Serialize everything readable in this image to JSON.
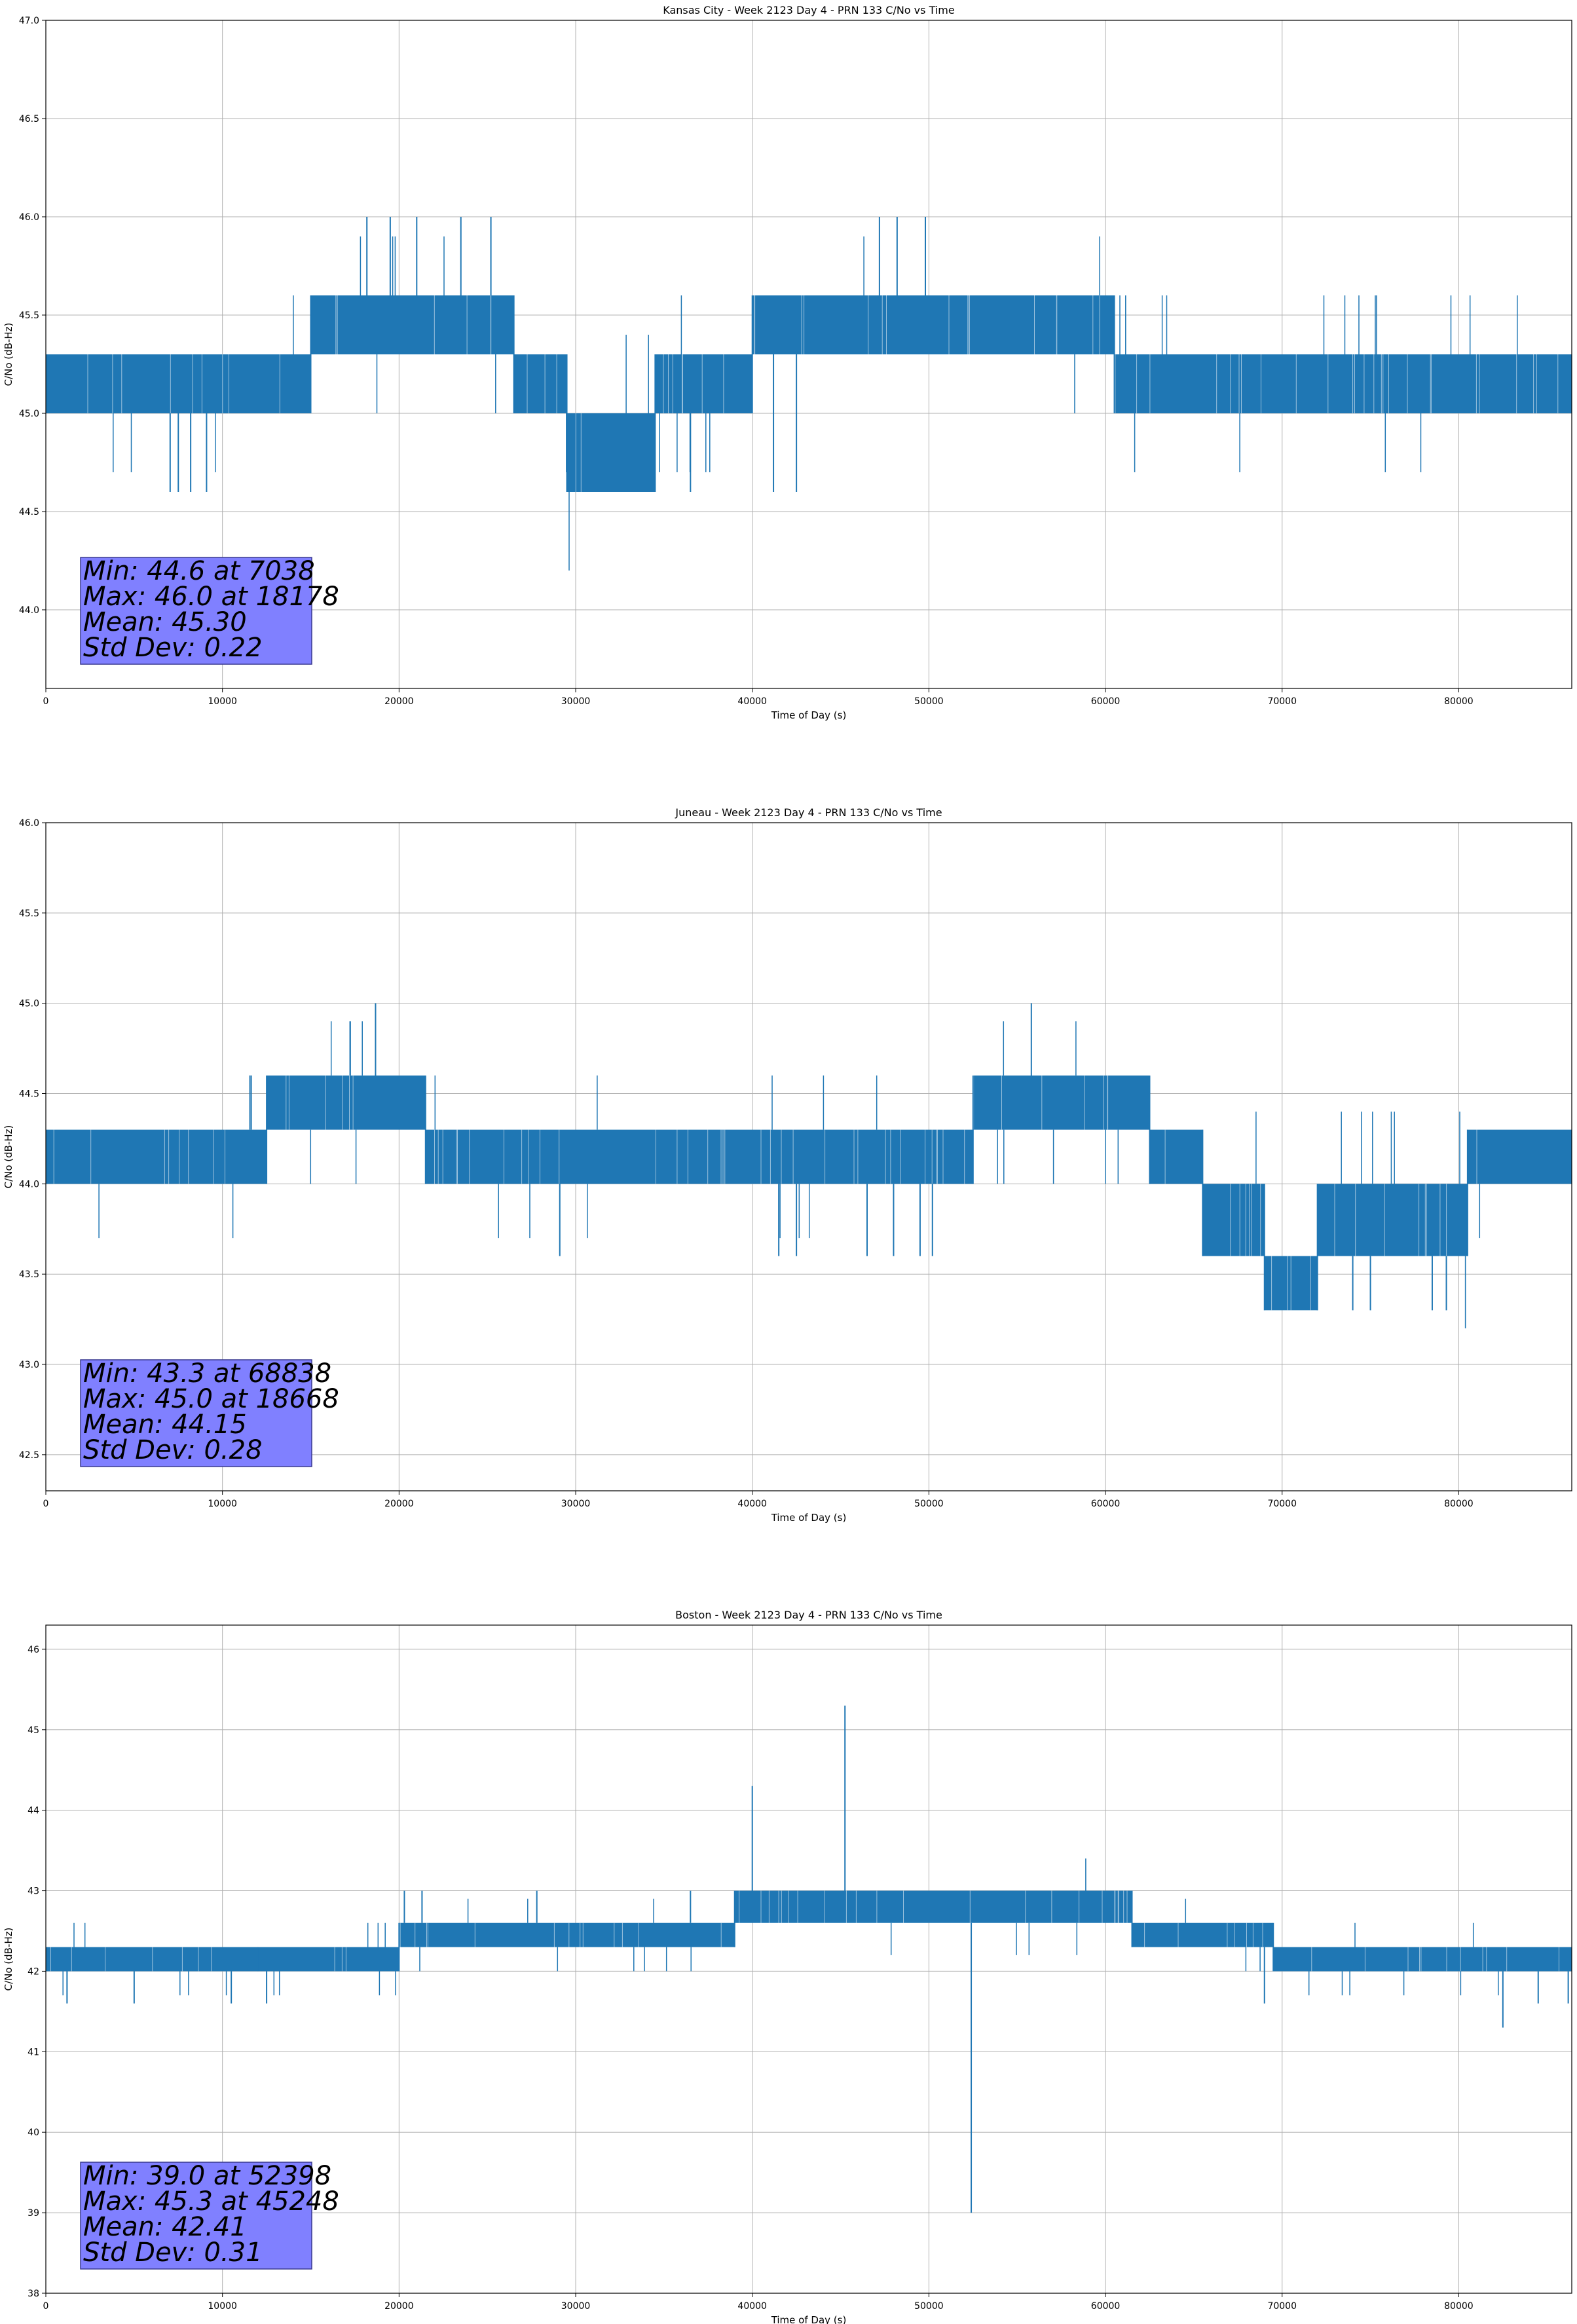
{
  "chart_data": [
    {
      "type": "line",
      "title": "Kansas City - Week 2123 Day 4 - PRN 133 C/No vs Time",
      "xlabel": "Time of Day (s)",
      "ylabel": "C/No (dB-Hz)",
      "xlim": [
        0,
        86400
      ],
      "ylim": [
        43.6,
        47.0
      ],
      "xticks": [
        0,
        10000,
        20000,
        30000,
        40000,
        50000,
        60000,
        70000,
        80000
      ],
      "yticks": [
        44.0,
        44.5,
        45.0,
        45.5,
        46.0,
        46.5,
        47.0
      ],
      "ytick_decimals": 1,
      "grid": true,
      "series_color": "#1f77b4",
      "stats_box": {
        "lines": [
          "Min: 44.6 at 7038",
          "Max: 46.0 at 18178",
          "Mean: 45.30",
          "Std Dev: 0.22"
        ],
        "color": "#8080ff"
      },
      "segments": [
        {
          "x0": 0,
          "x1": 15000,
          "levels": [
            45.0,
            45.3
          ]
        },
        {
          "x0": 15000,
          "x1": 26500,
          "levels": [
            45.3,
            45.6
          ]
        },
        {
          "x0": 26500,
          "x1": 29500,
          "levels": [
            45.0,
            45.3
          ]
        },
        {
          "x0": 29500,
          "x1": 34500,
          "levels": [
            44.6,
            45.0
          ]
        },
        {
          "x0": 34500,
          "x1": 40000,
          "levels": [
            45.0,
            45.3
          ]
        },
        {
          "x0": 40000,
          "x1": 60500,
          "levels": [
            45.3,
            45.6
          ]
        },
        {
          "x0": 60500,
          "x1": 86400,
          "levels": [
            45.0,
            45.3
          ]
        }
      ],
      "spikes": [
        {
          "x": 7038,
          "y": 44.6
        },
        {
          "x": 7500,
          "y": 44.6
        },
        {
          "x": 8200,
          "y": 44.6
        },
        {
          "x": 9100,
          "y": 44.6
        },
        {
          "x": 18178,
          "y": 46.0
        },
        {
          "x": 19500,
          "y": 46.0
        },
        {
          "x": 21000,
          "y": 46.0
        },
        {
          "x": 23500,
          "y": 46.0
        },
        {
          "x": 25200,
          "y": 46.0
        },
        {
          "x": 36500,
          "y": 44.6
        },
        {
          "x": 41200,
          "y": 44.6
        },
        {
          "x": 42500,
          "y": 44.6
        },
        {
          "x": 47200,
          "y": 46.0
        },
        {
          "x": 48200,
          "y": 46.0
        },
        {
          "x": 49800,
          "y": 46.0
        }
      ]
    },
    {
      "type": "line",
      "title": "Juneau - Week 2123 Day 4 - PRN 133 C/No vs Time",
      "xlabel": "Time of Day (s)",
      "ylabel": "C/No (dB-Hz)",
      "xlim": [
        0,
        86400
      ],
      "ylim": [
        42.3,
        46.0
      ],
      "xticks": [
        0,
        10000,
        20000,
        30000,
        40000,
        50000,
        60000,
        70000,
        80000
      ],
      "yticks": [
        42.5,
        43.0,
        43.5,
        44.0,
        44.5,
        45.0,
        45.5,
        46.0
      ],
      "ytick_decimals": 1,
      "grid": true,
      "series_color": "#1f77b4",
      "stats_box": {
        "lines": [
          "Min: 43.3 at 68838",
          "Max: 45.0 at 18668",
          "Mean: 44.15",
          "Std Dev: 0.28"
        ],
        "color": "#8080ff"
      },
      "segments": [
        {
          "x0": 0,
          "x1": 12500,
          "levels": [
            44.0,
            44.3
          ]
        },
        {
          "x0": 12500,
          "x1": 21500,
          "levels": [
            44.3,
            44.6
          ]
        },
        {
          "x0": 21500,
          "x1": 52500,
          "levels": [
            44.0,
            44.3
          ]
        },
        {
          "x0": 52500,
          "x1": 62500,
          "levels": [
            44.3,
            44.6
          ]
        },
        {
          "x0": 62500,
          "x1": 65500,
          "levels": [
            44.0,
            44.3
          ]
        },
        {
          "x0": 65500,
          "x1": 69000,
          "levels": [
            43.6,
            44.0
          ]
        },
        {
          "x0": 69000,
          "x1": 72000,
          "levels": [
            43.3,
            43.6
          ]
        },
        {
          "x0": 72000,
          "x1": 80500,
          "levels": [
            43.6,
            44.0
          ]
        },
        {
          "x0": 80500,
          "x1": 86400,
          "levels": [
            44.0,
            44.3
          ]
        }
      ],
      "spikes": [
        {
          "x": 18668,
          "y": 45.0
        },
        {
          "x": 55800,
          "y": 45.0
        },
        {
          "x": 29100,
          "y": 43.6
        },
        {
          "x": 41500,
          "y": 43.6
        },
        {
          "x": 42500,
          "y": 43.6
        },
        {
          "x": 46500,
          "y": 43.6
        },
        {
          "x": 48000,
          "y": 43.6
        },
        {
          "x": 49500,
          "y": 43.6
        },
        {
          "x": 50200,
          "y": 43.6
        },
        {
          "x": 74000,
          "y": 43.3
        },
        {
          "x": 75000,
          "y": 43.3
        },
        {
          "x": 78500,
          "y": 43.3
        },
        {
          "x": 79300,
          "y": 43.3
        }
      ]
    },
    {
      "type": "line",
      "title": "Boston - Week 2123 Day 4 - PRN 133 C/No vs Time",
      "xlabel": "Time of Day (s)",
      "ylabel": "C/No (dB-Hz)",
      "xlim": [
        0,
        86400
      ],
      "ylim": [
        38.0,
        46.3
      ],
      "xticks": [
        0,
        10000,
        20000,
        30000,
        40000,
        50000,
        60000,
        70000,
        80000
      ],
      "yticks": [
        38,
        39,
        40,
        41,
        42,
        43,
        44,
        45,
        46
      ],
      "ytick_decimals": 0,
      "grid": true,
      "series_color": "#1f77b4",
      "stats_box": {
        "lines": [
          "Min: 39.0 at 52398",
          "Max: 45.3 at 45248",
          "Mean: 42.41",
          "Std Dev: 0.31"
        ],
        "color": "#8080ff"
      },
      "segments": [
        {
          "x0": 0,
          "x1": 12000,
          "levels": [
            42.0,
            42.3
          ]
        },
        {
          "x0": 12000,
          "x1": 20000,
          "levels": [
            42.0,
            42.3
          ]
        },
        {
          "x0": 20000,
          "x1": 39000,
          "levels": [
            42.3,
            42.6
          ]
        },
        {
          "x0": 39000,
          "x1": 61500,
          "levels": [
            42.6,
            43.0
          ]
        },
        {
          "x0": 61500,
          "x1": 69500,
          "levels": [
            42.3,
            42.6
          ]
        },
        {
          "x0": 69500,
          "x1": 86400,
          "levels": [
            42.0,
            42.3
          ]
        }
      ],
      "spikes": [
        {
          "x": 45248,
          "y": 45.3
        },
        {
          "x": 40000,
          "y": 44.3
        },
        {
          "x": 52398,
          "y": 39.0
        },
        {
          "x": 20300,
          "y": 43.0
        },
        {
          "x": 21300,
          "y": 43.0
        },
        {
          "x": 27800,
          "y": 43.0
        },
        {
          "x": 36500,
          "y": 43.0
        },
        {
          "x": 1200,
          "y": 41.6
        },
        {
          "x": 5000,
          "y": 41.6
        },
        {
          "x": 10500,
          "y": 41.6
        },
        {
          "x": 12500,
          "y": 41.6
        },
        {
          "x": 82500,
          "y": 41.3
        },
        {
          "x": 69000,
          "y": 41.6
        },
        {
          "x": 84500,
          "y": 41.6
        },
        {
          "x": 86200,
          "y": 41.6
        }
      ]
    }
  ]
}
